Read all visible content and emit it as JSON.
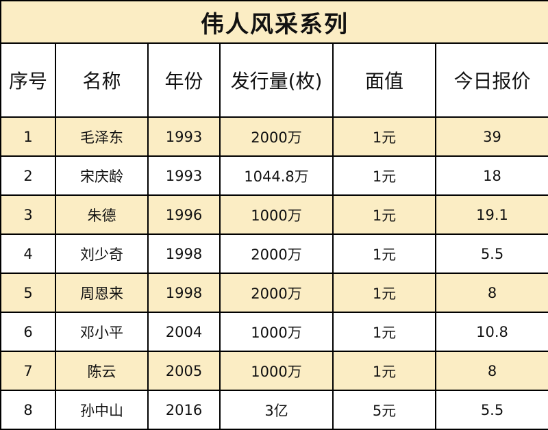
{
  "title": "伟人风采系列",
  "columns": [
    "序号",
    "名称",
    "年份",
    "发行量(枚)",
    "面值",
    "今日报价"
  ],
  "rows": [
    [
      "1",
      "毛泽东",
      "1993",
      "2000万",
      "1元",
      "39"
    ],
    [
      "2",
      "宋庆龄",
      "1993",
      "1044.8万",
      "1元",
      "18"
    ],
    [
      "3",
      "朱德",
      "1996",
      "1000万",
      "1元",
      "19.1"
    ],
    [
      "4",
      "刘少奇",
      "1998",
      "2000万",
      "1元",
      "5.5"
    ],
    [
      "5",
      "周恩来",
      "1998",
      "2000万",
      "1元",
      "8"
    ],
    [
      "6",
      "邓小平",
      "2004",
      "1000万",
      "1元",
      "10.8"
    ],
    [
      "7",
      "陈云",
      "2005",
      "1000万",
      "1元",
      "8"
    ],
    [
      "8",
      "孙中山",
      "2016",
      "3亿",
      "5元",
      "5.5"
    ]
  ],
  "colors": {
    "stripe": "#fbedc4",
    "border": "#000000",
    "text": "#111111"
  }
}
